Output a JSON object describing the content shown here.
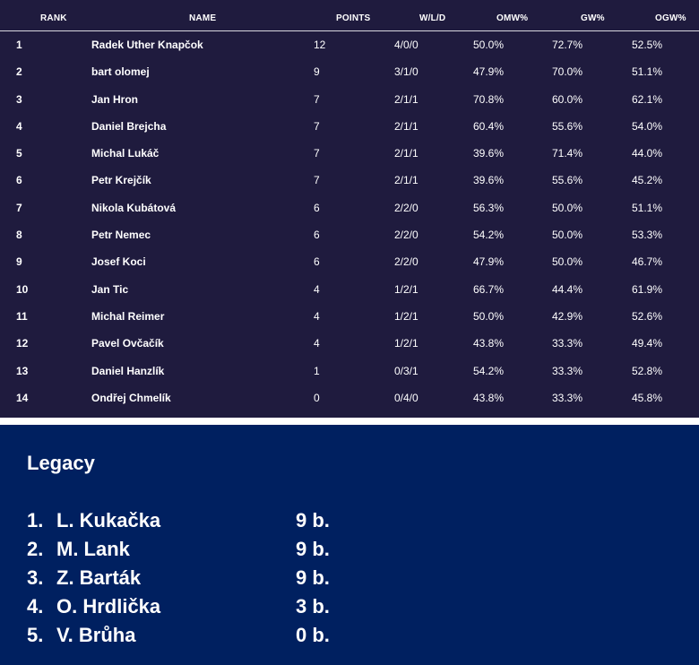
{
  "standings": {
    "headers": {
      "rank": "RANK",
      "name": "NAME",
      "points": "POINTS",
      "wld": "W/L/D",
      "omw": "OMW%",
      "gw": "GW%",
      "ogw": "OGW%"
    },
    "rows": [
      {
        "rank": "1",
        "name": "Radek Uther Knapčok",
        "points": "12",
        "wld": "4/0/0",
        "omw": "50.0%",
        "gw": "72.7%",
        "ogw": "52.5%"
      },
      {
        "rank": "2",
        "name": "bart olomej",
        "points": "9",
        "wld": "3/1/0",
        "omw": "47.9%",
        "gw": "70.0%",
        "ogw": "51.1%"
      },
      {
        "rank": "3",
        "name": "Jan Hron",
        "points": "7",
        "wld": "2/1/1",
        "omw": "70.8%",
        "gw": "60.0%",
        "ogw": "62.1%"
      },
      {
        "rank": "4",
        "name": "Daniel Brejcha",
        "points": "7",
        "wld": "2/1/1",
        "omw": "60.4%",
        "gw": "55.6%",
        "ogw": "54.0%"
      },
      {
        "rank": "5",
        "name": "Michal Lukáč",
        "points": "7",
        "wld": "2/1/1",
        "omw": "39.6%",
        "gw": "71.4%",
        "ogw": "44.0%"
      },
      {
        "rank": "6",
        "name": "Petr Krejčík",
        "points": "7",
        "wld": "2/1/1",
        "omw": "39.6%",
        "gw": "55.6%",
        "ogw": "45.2%"
      },
      {
        "rank": "7",
        "name": "Nikola Kubátová",
        "points": "6",
        "wld": "2/2/0",
        "omw": "56.3%",
        "gw": "50.0%",
        "ogw": "51.1%"
      },
      {
        "rank": "8",
        "name": "Petr Nemec",
        "points": "6",
        "wld": "2/2/0",
        "omw": "54.2%",
        "gw": "50.0%",
        "ogw": "53.3%"
      },
      {
        "rank": "9",
        "name": "Josef Koci",
        "points": "6",
        "wld": "2/2/0",
        "omw": "47.9%",
        "gw": "50.0%",
        "ogw": "46.7%"
      },
      {
        "rank": "10",
        "name": "Jan Tic",
        "points": "4",
        "wld": "1/2/1",
        "omw": "66.7%",
        "gw": "44.4%",
        "ogw": "61.9%"
      },
      {
        "rank": "11",
        "name": "Michal Reimer",
        "points": "4",
        "wld": "1/2/1",
        "omw": "50.0%",
        "gw": "42.9%",
        "ogw": "52.6%"
      },
      {
        "rank": "12",
        "name": "Pavel Ovčačík",
        "points": "4",
        "wld": "1/2/1",
        "omw": "43.8%",
        "gw": "33.3%",
        "ogw": "49.4%"
      },
      {
        "rank": "13",
        "name": "Daniel Hanzlík",
        "points": "1",
        "wld": "0/3/1",
        "omw": "54.2%",
        "gw": "33.3%",
        "ogw": "52.8%"
      },
      {
        "rank": "14",
        "name": "Ondřej Chmelík",
        "points": "0",
        "wld": "0/4/0",
        "omw": "43.8%",
        "gw": "33.3%",
        "ogw": "45.8%"
      }
    ]
  },
  "legacy": {
    "title": "Legacy",
    "items": [
      {
        "num": "1.",
        "name": "L. Kukačka",
        "points": "9 b."
      },
      {
        "num": "2.",
        "name": "M. Lank",
        "points": "9 b."
      },
      {
        "num": "3.",
        "name": "Z. Barták",
        "points": "9 b."
      },
      {
        "num": "4.",
        "name": "O. Hrdlička",
        "points": "3 b."
      },
      {
        "num": "5.",
        "name": "V. Brůha",
        "points": "0 b."
      }
    ]
  }
}
